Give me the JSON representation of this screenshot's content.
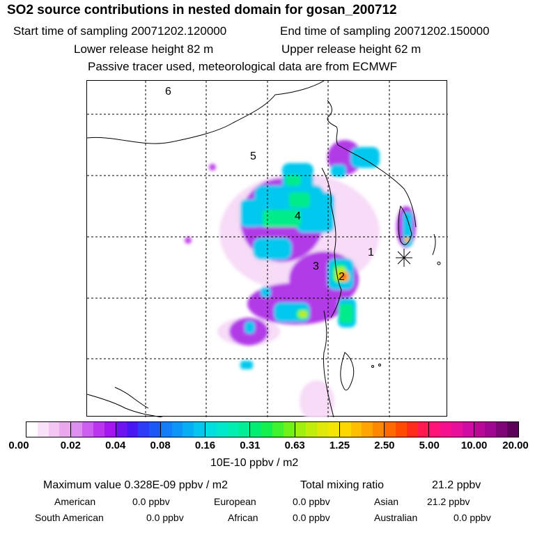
{
  "header": {
    "title": "SO2 source contributions in nested domain for gosan_200712",
    "start_label": "Start time of sampling 20071202.120000",
    "end_label": "End time of sampling 20071202.150000",
    "lower_label": "Lower release height   82 m",
    "upper_label": "Upper release height   62 m",
    "info": "Passive tracer used, meteorological data are from ECMWF"
  },
  "map": {
    "region_labels": [
      "1",
      "2",
      "3",
      "4",
      "5",
      "6"
    ],
    "receptor_marker": "asterisk-icon"
  },
  "colorbar": {
    "ticks": [
      "0.00",
      "0.02",
      "0.04",
      "0.08",
      "0.16",
      "0.31",
      "0.63",
      "1.25",
      "2.50",
      "5.00",
      "10.00",
      "20.00"
    ],
    "unit": "10E-10 ppbv / m2",
    "colors": [
      [
        "#ffffff",
        "#fbe2fb",
        "#f3c6f3",
        "#eaa8ee"
      ],
      [
        "#dc8ff0",
        "#cc5ff0",
        "#bb35ee",
        "#a316ee"
      ],
      [
        "#6d14f0",
        "#4a18f5",
        "#2f3cf7",
        "#1c58f8"
      ],
      [
        "#137ef8",
        "#0d96f6",
        "#08aef3",
        "#04c6ef"
      ],
      [
        "#00dedf",
        "#00e8cc",
        "#00eeb0",
        "#00ef96"
      ],
      [
        "#00ee72",
        "#14f04e",
        "#3ff22f",
        "#6ff21a"
      ],
      [
        "#9ff00f",
        "#c2ec0a",
        "#dfe806",
        "#f5e600"
      ],
      [
        "#ffd700",
        "#ffbf00",
        "#ffa400",
        "#ff8700"
      ],
      [
        "#ff6800",
        "#ff4a00",
        "#ff2b1a",
        "#ff1a4e"
      ],
      [
        "#ff1478",
        "#f51090",
        "#e6109c",
        "#d00ca3"
      ],
      [
        "#b8089a",
        "#9d0690",
        "#7e0478",
        "#5c025a"
      ]
    ]
  },
  "stats": {
    "max_label": "Maximum value  0.328E-09 ppbv / m2",
    "total_label": "Total mixing ratio",
    "total_value": "21.2 ppbv",
    "american_label": "American",
    "american_value": "0.0 ppbv",
    "european_label": "European",
    "european_value": "0.0 ppbv",
    "asian_label": "Asian",
    "asian_value": "21.2 ppbv",
    "south_american_label": "South American",
    "south_american_value": "0.0 ppbv",
    "african_label": "African",
    "african_value": "0.0 ppbv",
    "australian_label": "Australian",
    "australian_value": "0.0 ppbv"
  }
}
